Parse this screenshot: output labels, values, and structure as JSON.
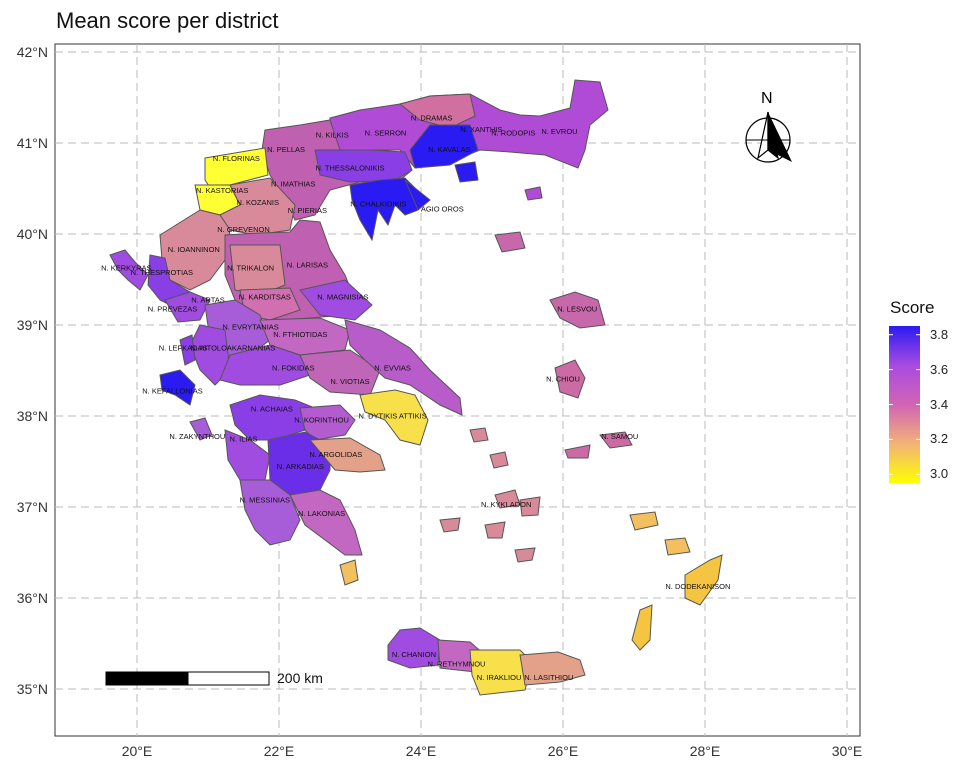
{
  "title": "Mean score per district",
  "axes": {
    "x_ticks": [
      "20°E",
      "22°E",
      "24°E",
      "26°E",
      "28°E",
      "30°E"
    ],
    "y_ticks": [
      "42°N",
      "41°N",
      "40°N",
      "39°N",
      "38°N",
      "37°N",
      "36°N",
      "35°N"
    ]
  },
  "legend": {
    "title": "Score",
    "values": [
      "3.8",
      "3.6",
      "3.4",
      "3.2",
      "3.0"
    ],
    "colors": [
      "#ffff00",
      "#f3b277",
      "#d264b4",
      "#a84be0",
      "#2a1bf2"
    ]
  },
  "scale_bar": {
    "label": "200 km"
  },
  "north_arrow": {
    "label": "N"
  },
  "chart_data": {
    "type": "choropleth",
    "title": "Mean score per district",
    "xlim": [
      19,
      30
    ],
    "ylim": [
      34.5,
      42
    ],
    "legend_range": [
      2.95,
      3.85
    ],
    "districts": [
      {
        "name": "N. EVROU",
        "lon": 25.95,
        "lat": 41.1,
        "value": 3.58
      },
      {
        "name": "N. RODOPIS",
        "lon": 25.3,
        "lat": 41.08,
        "value": 3.62
      },
      {
        "name": "N. XANTHIS",
        "lon": 24.85,
        "lat": 41.12,
        "value": 3.85
      },
      {
        "name": "N. DRAMAS",
        "lon": 24.15,
        "lat": 41.25,
        "value": 3.35
      },
      {
        "name": "N. SERRON",
        "lon": 23.5,
        "lat": 41.08,
        "value": 3.55
      },
      {
        "name": "N. KILKIS",
        "lon": 22.75,
        "lat": 41.06,
        "value": 3.32
      },
      {
        "name": "N. KAVALAS",
        "lon": 24.4,
        "lat": 40.9,
        "value": 3.85
      },
      {
        "name": "N. THESSALONIKIS",
        "lon": 23.0,
        "lat": 40.7,
        "value": 3.6
      },
      {
        "name": "N. CHALKIDIKIS",
        "lon": 23.4,
        "lat": 40.3,
        "value": 3.85
      },
      {
        "name": "AGIO OROS",
        "lon": 24.3,
        "lat": 40.25,
        "value": 3.85
      },
      {
        "name": "N. PELLAS",
        "lon": 22.1,
        "lat": 40.9,
        "value": 3.38
      },
      {
        "name": "N. FLORINAS",
        "lon": 21.4,
        "lat": 40.8,
        "value": 2.95
      },
      {
        "name": "N. KASTORIAS",
        "lon": 21.2,
        "lat": 40.45,
        "value": 2.95
      },
      {
        "name": "N. IMATHIAS",
        "lon": 22.2,
        "lat": 40.52,
        "value": 3.35
      },
      {
        "name": "N. KOZANIS",
        "lon": 21.7,
        "lat": 40.32,
        "value": 3.3
      },
      {
        "name": "N. PIERIAS",
        "lon": 22.4,
        "lat": 40.23,
        "value": 3.45
      },
      {
        "name": "N. GREVENON",
        "lon": 21.5,
        "lat": 40.02,
        "value": 3.28
      },
      {
        "name": "N. IOANNINON",
        "lon": 20.8,
        "lat": 39.8,
        "value": 3.3
      },
      {
        "name": "N. TRIKALON",
        "lon": 21.6,
        "lat": 39.6,
        "value": 3.3
      },
      {
        "name": "N. LARISAS",
        "lon": 22.4,
        "lat": 39.63,
        "value": 3.5
      },
      {
        "name": "N. KERKYRAS",
        "lon": 19.85,
        "lat": 39.6,
        "value": 3.65
      },
      {
        "name": "N. THESPROTIAS",
        "lon": 20.35,
        "lat": 39.55,
        "value": 3.7
      },
      {
        "name": "N. KARDITSAS",
        "lon": 21.8,
        "lat": 39.28,
        "value": 3.4
      },
      {
        "name": "N. MAGNISIAS",
        "lon": 22.9,
        "lat": 39.28,
        "value": 3.6
      },
      {
        "name": "N. ARTAS",
        "lon": 21.0,
        "lat": 39.25,
        "value": 3.55
      },
      {
        "name": "N. PREVEZAS",
        "lon": 20.5,
        "lat": 39.15,
        "value": 3.6
      },
      {
        "name": "N. EVRYTANIAS",
        "lon": 21.6,
        "lat": 38.95,
        "value": 3.5
      },
      {
        "name": "N. FTHIOTIDAS",
        "lon": 22.3,
        "lat": 38.87,
        "value": 3.45
      },
      {
        "name": "N. LEFKADAS",
        "lon": 20.65,
        "lat": 38.72,
        "value": 3.7
      },
      {
        "name": "N. AITOLOAKARNANIAS",
        "lon": 21.35,
        "lat": 38.72,
        "value": 3.62
      },
      {
        "name": "N. FOKIDAS",
        "lon": 22.2,
        "lat": 38.5,
        "value": 3.6
      },
      {
        "name": "N. VIOTIAS",
        "lon": 23.0,
        "lat": 38.35,
        "value": 3.42
      },
      {
        "name": "N. EVVIAS",
        "lon": 23.6,
        "lat": 38.5,
        "value": 3.5
      },
      {
        "name": "N. KEFALLONIAS",
        "lon": 20.5,
        "lat": 38.25,
        "value": 3.75
      },
      {
        "name": "N. ACHAIAS",
        "lon": 21.9,
        "lat": 38.05,
        "value": 3.65
      },
      {
        "name": "N. KORINTHOU",
        "lon": 22.6,
        "lat": 37.93,
        "value": 3.58
      },
      {
        "name": "N. DYTIKIS ATTIKIS",
        "lon": 23.6,
        "lat": 37.97,
        "value": 3.1
      },
      {
        "name": "N. ZAKYNTHOU",
        "lon": 20.85,
        "lat": 37.75,
        "value": 3.55
      },
      {
        "name": "N. ILIAS",
        "lon": 21.5,
        "lat": 37.72,
        "value": 3.6
      },
      {
        "name": "N. ARGOLIDAS",
        "lon": 22.8,
        "lat": 37.55,
        "value": 3.3
      },
      {
        "name": "N. ARKADIAS",
        "lon": 22.3,
        "lat": 37.42,
        "value": 3.7
      },
      {
        "name": "N. MESSINIAS",
        "lon": 21.8,
        "lat": 37.05,
        "value": 3.55
      },
      {
        "name": "N. LAKONIAS",
        "lon": 22.6,
        "lat": 36.9,
        "value": 3.45
      },
      {
        "name": "N. LESVOU",
        "lon": 26.2,
        "lat": 39.15,
        "value": 3.4
      },
      {
        "name": "N. CHIOU",
        "lon": 26.0,
        "lat": 38.38,
        "value": 3.35
      },
      {
        "name": "N. SAMOU",
        "lon": 26.8,
        "lat": 37.75,
        "value": 3.38
      },
      {
        "name": "N. KYKLADON",
        "lon": 25.2,
        "lat": 37.0,
        "value": 3.3
      },
      {
        "name": "N. DODEKANISON",
        "lon": 27.9,
        "lat": 36.1,
        "value": 3.12
      },
      {
        "name": "N. CHANION",
        "lon": 23.9,
        "lat": 35.35,
        "value": 3.6
      },
      {
        "name": "N. RETHYMNOU",
        "lon": 24.5,
        "lat": 35.25,
        "value": 3.45
      },
      {
        "name": "N. IRAKLIOU",
        "lon": 25.1,
        "lat": 35.1,
        "value": 3.05
      },
      {
        "name": "N. LASITHIOU",
        "lon": 25.8,
        "lat": 35.1,
        "value": 3.3
      }
    ]
  }
}
